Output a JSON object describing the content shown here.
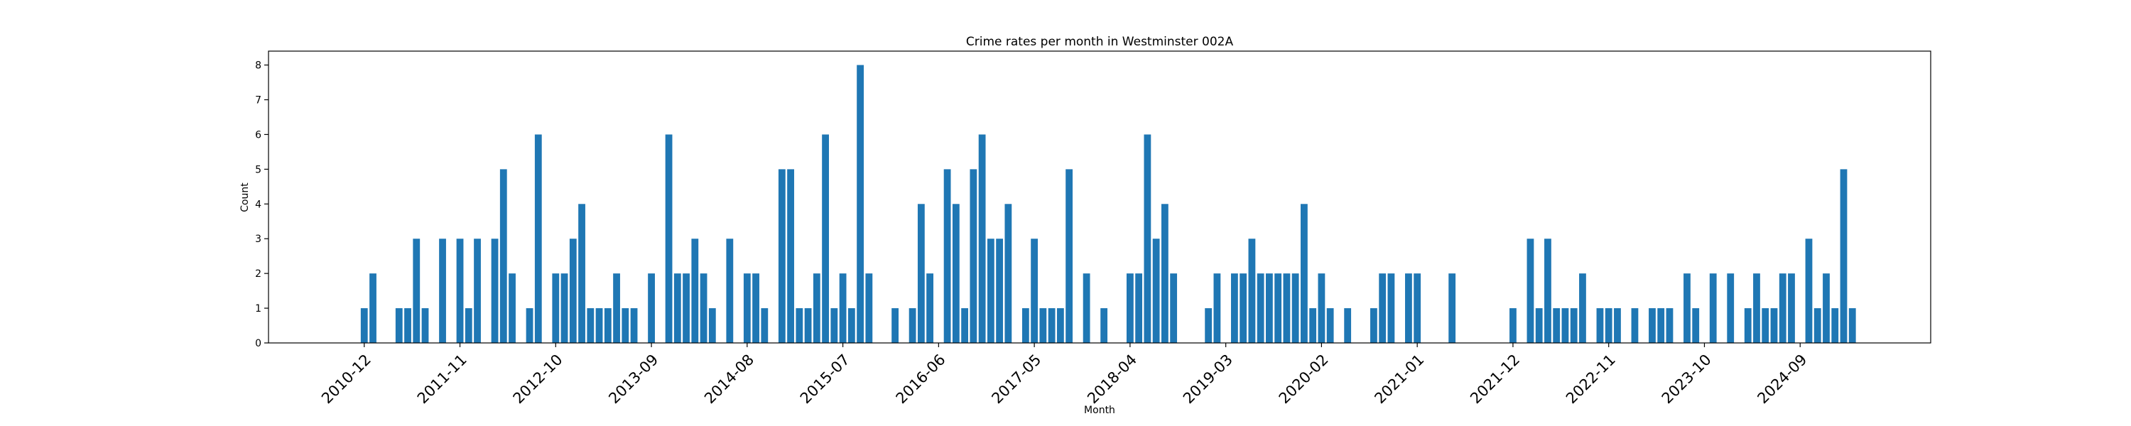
{
  "chart_data": {
    "type": "bar",
    "title": "Crime rates per month in Westminster 002A",
    "xlabel": "Month",
    "ylabel": "Count",
    "ylim": [
      0,
      8.4
    ],
    "yticks": [
      0,
      1,
      2,
      3,
      4,
      5,
      6,
      7,
      8
    ],
    "x_start": "2010-01",
    "x_end": "2025-12",
    "xticks": [
      "2010-12",
      "2011-11",
      "2012-10",
      "2013-09",
      "2014-08",
      "2015-07",
      "2016-06",
      "2017-05",
      "2018-04",
      "2019-03",
      "2020-02",
      "2021-01",
      "2021-12",
      "2022-11",
      "2023-10",
      "2024-09"
    ],
    "bar_color": "#1f77b4",
    "grid": false,
    "categories": [
      "2010-12",
      "2011-01",
      "2011-04",
      "2011-05",
      "2011-06",
      "2011-07",
      "2011-09",
      "2011-11",
      "2011-12",
      "2012-01",
      "2012-03",
      "2012-04",
      "2012-05",
      "2012-07",
      "2012-08",
      "2012-10",
      "2012-11",
      "2012-12",
      "2013-01",
      "2013-02",
      "2013-03",
      "2013-04",
      "2013-05",
      "2013-06",
      "2013-07",
      "2013-09",
      "2013-11",
      "2013-12",
      "2014-01",
      "2014-02",
      "2014-03",
      "2014-04",
      "2014-06",
      "2014-08",
      "2014-09",
      "2014-10",
      "2014-12",
      "2015-01",
      "2015-02",
      "2015-03",
      "2015-04",
      "2015-05",
      "2015-06",
      "2015-07",
      "2015-08",
      "2015-09",
      "2015-10",
      "2016-01",
      "2016-03",
      "2016-04",
      "2016-05",
      "2016-07",
      "2016-08",
      "2016-09",
      "2016-10",
      "2016-11",
      "2016-12",
      "2017-01",
      "2017-02",
      "2017-04",
      "2017-05",
      "2017-06",
      "2017-07",
      "2017-08",
      "2017-09",
      "2017-11",
      "2018-01",
      "2018-04",
      "2018-05",
      "2018-06",
      "2018-07",
      "2018-08",
      "2018-09",
      "2019-01",
      "2019-02",
      "2019-04",
      "2019-05",
      "2019-06",
      "2019-07",
      "2019-08",
      "2019-09",
      "2019-10",
      "2019-11",
      "2019-12",
      "2020-01",
      "2020-02",
      "2020-03",
      "2020-05",
      "2020-08",
      "2020-09",
      "2020-10",
      "2020-12",
      "2021-01",
      "2021-05",
      "2021-12",
      "2022-02",
      "2022-03",
      "2022-04",
      "2022-05",
      "2022-06",
      "2022-07",
      "2022-08",
      "2022-10",
      "2022-11",
      "2022-12",
      "2023-02",
      "2023-04",
      "2023-05",
      "2023-06",
      "2023-08",
      "2023-09",
      "2023-11",
      "2024-01",
      "2024-03",
      "2024-04",
      "2024-05",
      "2024-06",
      "2024-07",
      "2024-08",
      "2024-10",
      "2024-11",
      "2024-12",
      "2025-01",
      "2025-02",
      "2025-03"
    ],
    "values": [
      1,
      2,
      1,
      1,
      3,
      1,
      3,
      3,
      1,
      3,
      3,
      5,
      2,
      1,
      6,
      2,
      2,
      3,
      4,
      1,
      1,
      1,
      2,
      1,
      1,
      2,
      6,
      2,
      2,
      3,
      2,
      1,
      3,
      2,
      2,
      1,
      5,
      5,
      1,
      1,
      2,
      6,
      1,
      2,
      1,
      8,
      2,
      1,
      1,
      4,
      2,
      5,
      4,
      1,
      5,
      6,
      3,
      3,
      4,
      1,
      3,
      1,
      1,
      1,
      5,
      2,
      1,
      2,
      2,
      6,
      3,
      4,
      2,
      1,
      2,
      2,
      2,
      3,
      2,
      2,
      2,
      2,
      2,
      4,
      1,
      2,
      1,
      1,
      1,
      2,
      2,
      2,
      2,
      2,
      1,
      3,
      1,
      3,
      1,
      1,
      1,
      2,
      1,
      1,
      1,
      1,
      1,
      1,
      1,
      2,
      1,
      2,
      2,
      1,
      2,
      1,
      1,
      2,
      2,
      3,
      1,
      2,
      1,
      5,
      1
    ]
  }
}
